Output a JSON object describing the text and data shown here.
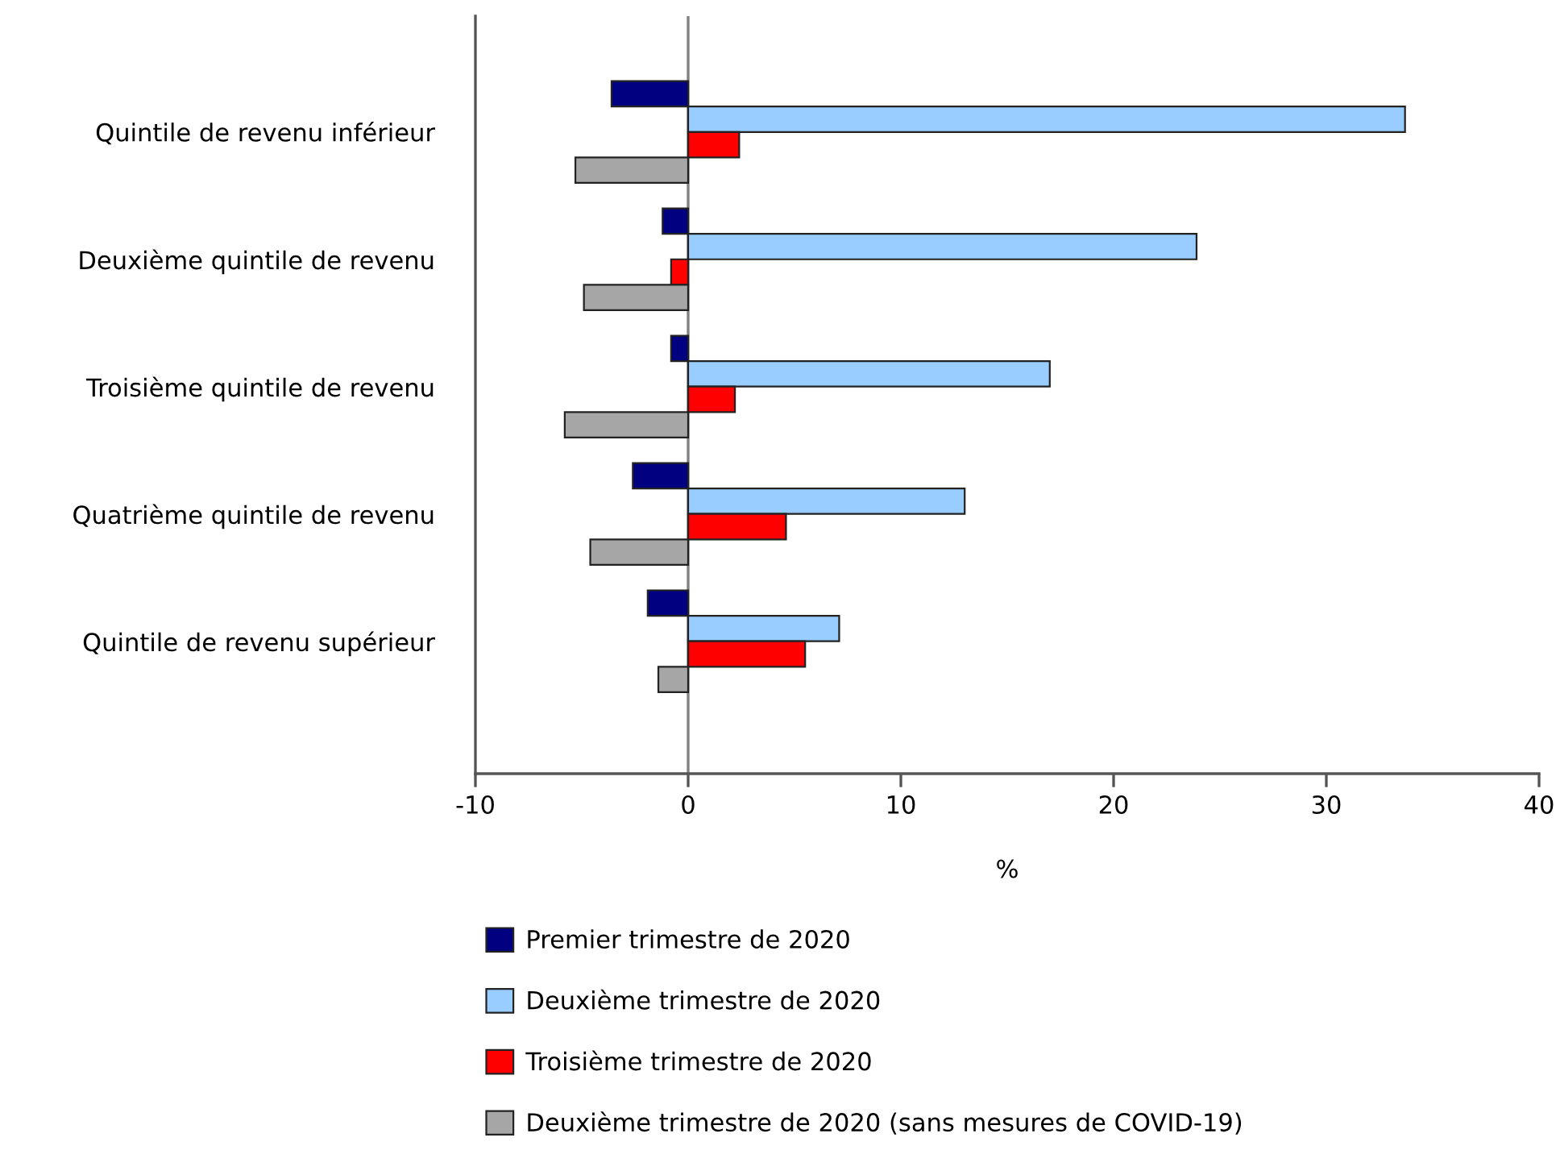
{
  "chart_data": {
    "type": "bar",
    "orientation": "horizontal",
    "xlabel": "%",
    "categories": [
      "Quintile de revenu inférieur",
      "Deuxième quintile de revenu",
      "Troisième quintile de revenu",
      "Quatrième quintile de revenu",
      "Quintile de revenu supérieur"
    ],
    "series": [
      {
        "name": "Premier trimestre de 2020",
        "color": "#000080",
        "values": [
          -3.6,
          -1.2,
          -0.8,
          -2.6,
          -1.9
        ]
      },
      {
        "name": "Deuxième trimestre de 2020",
        "color": "#99ccff",
        "values": [
          33.7,
          23.9,
          17.0,
          13.0,
          7.1
        ]
      },
      {
        "name": "Troisième trimestre de 2020",
        "color": "#ff0000",
        "values": [
          2.4,
          -0.8,
          2.2,
          4.6,
          5.5
        ]
      },
      {
        "name": "Deuxième trimestre de 2020 (sans mesures de COVID-19)",
        "color": "#a6a6a6",
        "values": [
          -5.3,
          -4.9,
          -5.8,
          -4.6,
          -1.4
        ]
      }
    ],
    "xlim": [
      -10,
      40
    ],
    "xticks": [
      -10,
      0,
      10,
      20,
      30,
      40
    ],
    "ref_lines": [
      {
        "axis": "x",
        "value": 0,
        "color": "#808080"
      }
    ],
    "grid": false,
    "legend": "bottom"
  }
}
